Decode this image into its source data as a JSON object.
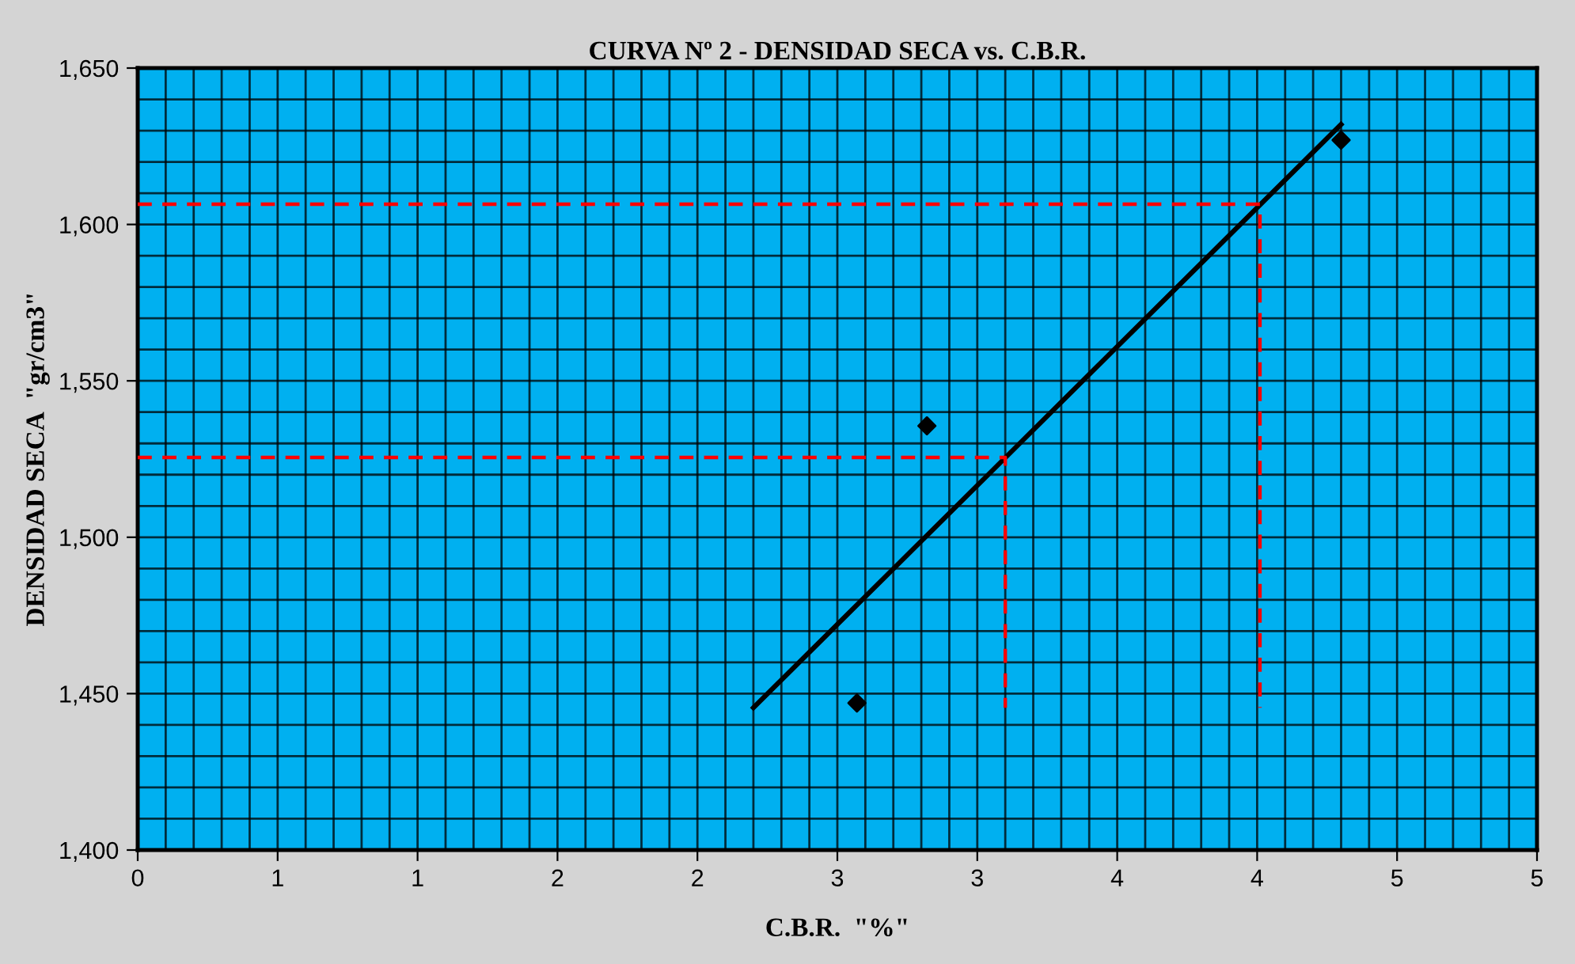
{
  "chart_data": {
    "type": "scatter",
    "title": "CURVA Nº 2 - DENSIDAD SECA vs. C.B.R.",
    "xlabel": "C.B.R.  \"%\"",
    "ylabel": "DENSIDAD SECA  \"gr/cm3\"",
    "xlim": [
      0,
      5
    ],
    "xticks": [
      0,
      {
        "value": 0.5,
        "label": "1"
      },
      1,
      {
        "value": 1.5,
        "label": "2"
      },
      2,
      {
        "value": 2.5,
        "label": "3"
      },
      3,
      {
        "value": 3.5,
        "label": "4"
      },
      4,
      {
        "value": 4.5,
        "label": "5"
      },
      5
    ],
    "ylim": [
      1400,
      1650
    ],
    "yticks": [
      {
        "value": 1400,
        "label": "1,400"
      },
      {
        "value": 1450,
        "label": "1,450"
      },
      {
        "value": 1500,
        "label": "1,500"
      },
      {
        "value": 1550,
        "label": "1,550"
      },
      {
        "value": 1600,
        "label": "1,600"
      },
      {
        "value": 1650,
        "label": "1,650"
      }
    ],
    "grid": true,
    "series": [
      {
        "type": "line",
        "color": "#000000",
        "x": [
          2.2,
          4.3
        ],
        "values": [
          1445.5,
          1632
        ],
        "line_style": "solid",
        "marker": "none"
      },
      {
        "color": "#000000",
        "x": [
          2.57,
          2.82,
          4.3
        ],
        "values": [
          1447,
          1535.6,
          1627
        ],
        "marker": "diamond"
      },
      {
        "type": "line",
        "color": "#ff0000",
        "x": [
          0,
          3.1,
          3.1
        ],
        "values": [
          1525.5,
          1525.5,
          1445.5
        ],
        "line_style": "dashed",
        "marker": "none"
      },
      {
        "type": "line",
        "color": "#ff0000",
        "x": [
          0,
          4.01,
          4.01
        ],
        "values": [
          1606.5,
          1606.5,
          1445.5
        ],
        "line_style": "dashed",
        "marker": "none"
      }
    ]
  }
}
